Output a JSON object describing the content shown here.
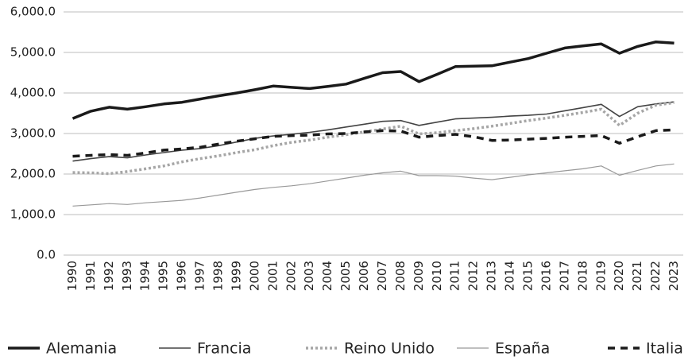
{
  "chart_data": {
    "type": "line",
    "categories": [
      "1990",
      "1991",
      "1992",
      "1993",
      "1994",
      "1995",
      "1996",
      "1997",
      "1998",
      "1999",
      "2000",
      "2001",
      "2002",
      "2003",
      "2004",
      "2005",
      "2006",
      "2007",
      "2008",
      "2009",
      "2010",
      "2011",
      "2012",
      "2013",
      "2014",
      "2015",
      "2016",
      "2017",
      "2018",
      "2019",
      "2020",
      "2021",
      "2022",
      "2023"
    ],
    "ylim": [
      0,
      6000
    ],
    "yticks": [
      {
        "value": 0,
        "label": "0.0"
      },
      {
        "value": 1000,
        "label": "1,000.0"
      },
      {
        "value": 2000,
        "label": "2,000.0"
      },
      {
        "value": 3000,
        "label": "3,000.0"
      },
      {
        "value": 4000,
        "label": "4,000.0"
      },
      {
        "value": 5000,
        "label": "5,000.0"
      },
      {
        "value": 6000,
        "label": "6,000.0"
      }
    ],
    "grid": true,
    "legend": "bottom",
    "series": [
      {
        "name": "Alemania",
        "color": "#1a1a1a",
        "style": "thick",
        "values": [
          3370,
          3550,
          3650,
          3600,
          3660,
          3730,
          3770,
          3850,
          3930,
          4000,
          4080,
          4170,
          4140,
          4110,
          4160,
          4220,
          4360,
          4500,
          4530,
          4280,
          4460,
          4650,
          4660,
          4670,
          4760,
          4850,
          4980,
          5110,
          5160,
          5210,
          4980,
          5150,
          5260,
          5230
        ]
      },
      {
        "name": "Francia",
        "color": "#444444",
        "style": "solid",
        "values": [
          2320,
          2380,
          2430,
          2400,
          2470,
          2530,
          2590,
          2630,
          2700,
          2790,
          2880,
          2940,
          2980,
          3030,
          3090,
          3160,
          3230,
          3300,
          3320,
          3200,
          3280,
          3360,
          3380,
          3400,
          3430,
          3450,
          3480,
          3560,
          3640,
          3720,
          3420,
          3660,
          3730,
          3780
        ]
      },
      {
        "name": "Reino Unido",
        "color": "#a6a6a6",
        "style": "dotted",
        "values": [
          2040,
          2030,
          2010,
          2060,
          2130,
          2200,
          2300,
          2380,
          2450,
          2530,
          2600,
          2700,
          2780,
          2840,
          2910,
          2970,
          3040,
          3110,
          3180,
          2990,
          3020,
          3070,
          3120,
          3180,
          3250,
          3320,
          3380,
          3450,
          3520,
          3600,
          3200,
          3500,
          3700,
          3760
        ]
      },
      {
        "name": "España",
        "color": "#999999",
        "style": "thin",
        "values": [
          1210,
          1240,
          1270,
          1250,
          1290,
          1320,
          1350,
          1410,
          1480,
          1550,
          1620,
          1670,
          1710,
          1760,
          1830,
          1900,
          1970,
          2030,
          2070,
          1960,
          1960,
          1950,
          1900,
          1860,
          1920,
          1980,
          2030,
          2080,
          2130,
          2200,
          1970,
          2090,
          2200,
          2250
        ]
      },
      {
        "name": "Italia",
        "color": "#1a1a1a",
        "style": "dashed",
        "values": [
          2440,
          2460,
          2480,
          2460,
          2520,
          2590,
          2620,
          2660,
          2740,
          2810,
          2870,
          2930,
          2950,
          2960,
          2990,
          3000,
          3040,
          3070,
          3060,
          2910,
          2950,
          2980,
          2920,
          2830,
          2840,
          2860,
          2880,
          2910,
          2930,
          2950,
          2760,
          2920,
          3070,
          3090
        ]
      }
    ]
  }
}
